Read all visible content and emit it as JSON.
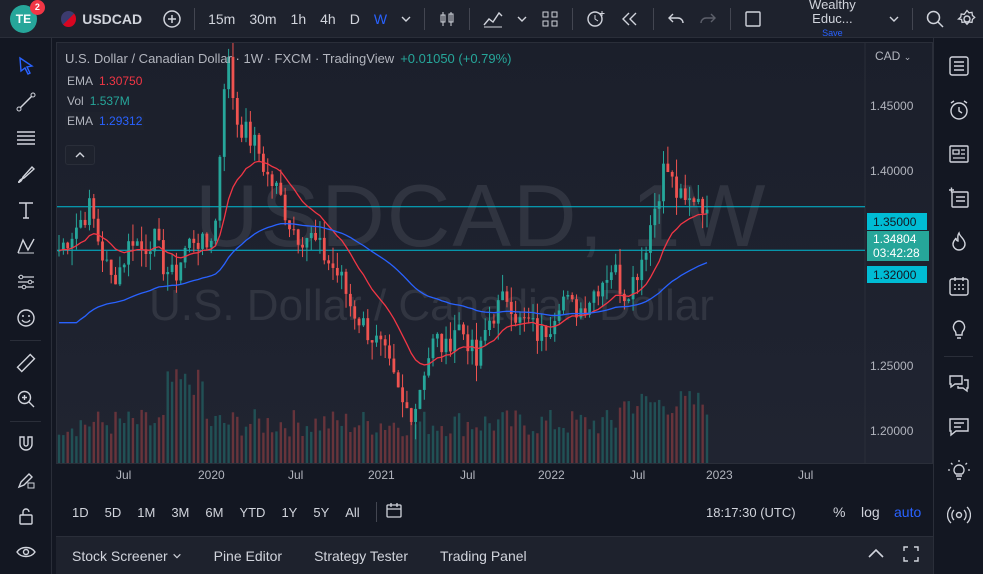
{
  "topbar": {
    "logo_text": "TE",
    "notification_count": "2",
    "symbol": "USDCAD",
    "timeframes": [
      "15m",
      "30m",
      "1h",
      "4h",
      "D",
      "W"
    ],
    "active_timeframe": "W",
    "account_name": "Wealthy Educ...",
    "account_save": "Save"
  },
  "legend": {
    "title": "U.S. Dollar / Canadian Dollar · 1W · FXCM · TradingView",
    "change": "+0.01050 (+0.79%)",
    "ema1_label": "EMA",
    "ema1_value": "1.30750",
    "vol_label": "Vol",
    "vol_value": "1.537M",
    "ema2_label": "EMA",
    "ema2_value": "1.29312"
  },
  "watermark": {
    "line1": "USDCAD, 1W",
    "line2": "U.S. Dollar / Canadian Dollar"
  },
  "price_axis": {
    "currency": "CAD",
    "labels": [
      "1.45000",
      "1.40000",
      "1.25000",
      "1.20000"
    ],
    "level_upper": "1.35000",
    "level_lower": "1.32000",
    "current_price": "1.34804",
    "countdown": "03:42:28"
  },
  "time_axis": {
    "labels": [
      "Jul",
      "2020",
      "Jul",
      "2021",
      "Jul",
      "2022",
      "Jul",
      "2023",
      "Jul"
    ]
  },
  "range_bar": {
    "ranges": [
      "1D",
      "5D",
      "1M",
      "3M",
      "6M",
      "YTD",
      "1Y",
      "5Y",
      "All"
    ],
    "clock": "18:17:30 (UTC)",
    "percent": "%",
    "log": "log",
    "auto": "auto"
  },
  "bottom_panel": {
    "tabs": [
      "Stock Screener",
      "Pine Editor",
      "Strategy Tester",
      "Trading Panel"
    ]
  },
  "colors": {
    "up": "#26a69a",
    "down": "#ef5350",
    "ema_fast": "#f23645",
    "ema_slow": "#2962ff",
    "level_line": "#00bcd4",
    "accent": "#2962ff"
  },
  "chart_data": {
    "type": "candlestick",
    "symbol": "USDCAD",
    "interval": "1W",
    "ylim": [
      1.18,
      1.47
    ],
    "weekly_close_path": [
      1.32,
      1.33,
      1.34,
      1.35,
      1.32,
      1.3,
      1.31,
      1.33,
      1.32,
      1.33,
      1.31,
      1.3,
      1.32,
      1.33,
      1.32,
      1.34,
      1.46,
      1.41,
      1.4,
      1.39,
      1.37,
      1.36,
      1.34,
      1.33,
      1.33,
      1.32,
      1.31,
      1.3,
      1.28,
      1.27,
      1.26,
      1.25,
      1.23,
      1.21,
      1.21,
      1.24,
      1.26,
      1.25,
      1.27,
      1.26,
      1.24,
      1.27,
      1.28,
      1.29,
      1.27,
      1.27,
      1.26,
      1.27,
      1.29,
      1.28,
      1.28,
      1.29,
      1.3,
      1.31,
      1.29,
      1.3,
      1.32,
      1.35,
      1.38,
      1.36,
      1.35,
      1.36,
      1.348
    ],
    "ema_fast_value": 1.3075,
    "ema_slow_value": 1.29312,
    "horizontal_levels": [
      1.35,
      1.32
    ],
    "last_price": 1.34804
  }
}
